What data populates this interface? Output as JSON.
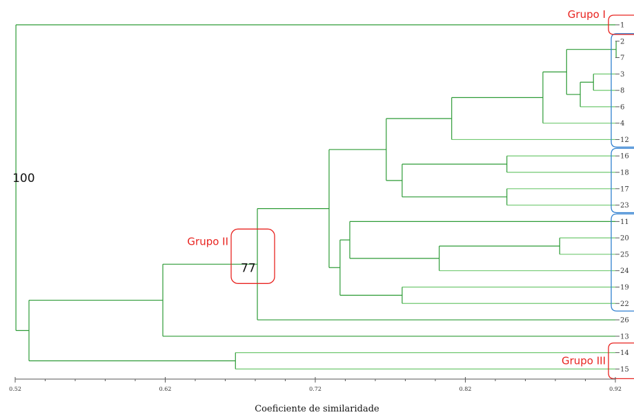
{
  "axis": {
    "title": "Coeficiente de similaridade",
    "ticks": [
      {
        "v": 0.52,
        "label": "0.52"
      },
      {
        "v": 0.62,
        "label": "0.62"
      },
      {
        "v": 0.72,
        "label": "0.72"
      },
      {
        "v": 0.82,
        "label": "0.82"
      },
      {
        "v": 0.92,
        "label": "0.92"
      }
    ],
    "range": [
      0.52,
      0.92
    ],
    "minor_per_major": 5
  },
  "leaves": [
    "1",
    "2",
    "7",
    "3",
    "8",
    "6",
    "4",
    "12",
    "16",
    "18",
    "17",
    "23",
    "11",
    "20",
    "25",
    "24",
    "19",
    "22",
    "26",
    "13",
    "14",
    "15"
  ],
  "clusters": [
    {
      "id": "c1",
      "a": "2",
      "b": "7",
      "sim": 0.9205
    },
    {
      "id": "c2",
      "a": "3",
      "b": "8",
      "sim": 0.9054
    },
    {
      "id": "c3",
      "a": "c2",
      "b": "6",
      "sim": 0.8966
    },
    {
      "id": "c4",
      "a": "c1",
      "b": "c3",
      "sim": 0.8875
    },
    {
      "id": "c5",
      "a": "c4",
      "b": "4",
      "sim": 0.8717
    },
    {
      "id": "c6",
      "a": "c5",
      "b": "12",
      "sim": 0.8109
    },
    {
      "id": "c7",
      "a": "16",
      "b": "18",
      "sim": 0.8477
    },
    {
      "id": "c8",
      "a": "17",
      "b": "23",
      "sim": 0.8477
    },
    {
      "id": "c9",
      "a": "c7",
      "b": "c8",
      "sim": 0.7779
    },
    {
      "id": "c10",
      "a": "c6",
      "b": "c9",
      "sim": 0.7673
    },
    {
      "id": "c11",
      "a": "20",
      "b": "25",
      "sim": 0.8829
    },
    {
      "id": "c12",
      "a": "c11",
      "b": "24",
      "sim": 0.8026
    },
    {
      "id": "c13",
      "a": "11",
      "b": "c12",
      "sim": 0.743
    },
    {
      "id": "c14",
      "a": "19",
      "b": "22",
      "sim": 0.7779
    },
    {
      "id": "c15",
      "a": "c13",
      "b": "c14",
      "sim": 0.7365
    },
    {
      "id": "c16",
      "a": "c10",
      "b": "c15",
      "sim": 0.7292
    },
    {
      "id": "c17",
      "a": "c16",
      "b": "26",
      "sim": 0.6814
    },
    {
      "id": "c18",
      "a": "c17",
      "b": "13",
      "sim": 0.6184
    },
    {
      "id": "c19",
      "a": "14",
      "b": "15",
      "sim": 0.6668
    },
    {
      "id": "c20",
      "a": "c18",
      "b": "c19",
      "sim": 0.5292
    },
    {
      "id": "c21",
      "a": "1",
      "b": "c20",
      "sim": 0.5205
    }
  ],
  "light_links": [
    "2",
    "7",
    "3",
    "8",
    "6",
    "4",
    "12",
    "16",
    "18",
    "17",
    "23",
    "20",
    "25",
    "24",
    "19",
    "22",
    "14",
    "15"
  ],
  "groups": [
    {
      "label": "Grupo I",
      "leaves": [
        "1"
      ],
      "color": "#e8231f"
    },
    {
      "label": "Grupo II",
      "around": "c17",
      "color": "#e8231f"
    },
    {
      "label": "Grupo III",
      "leaves": [
        "14",
        "15"
      ],
      "color": "#e8231f"
    }
  ],
  "subgroups": [
    {
      "leaves": [
        "2",
        "12"
      ],
      "color": "#2e7fd0"
    },
    {
      "leaves": [
        "16",
        "23"
      ],
      "color": "#2e7fd0"
    },
    {
      "leaves": [
        "11",
        "22"
      ],
      "color": "#2e7fd0"
    }
  ],
  "node_labels": [
    {
      "node": "c17",
      "text": "77"
    },
    {
      "node": "c21",
      "text": "100"
    }
  ],
  "colors": {
    "dark_line": "#2b9a34",
    "light_line": "#6fc86f",
    "axis": "#555555"
  }
}
